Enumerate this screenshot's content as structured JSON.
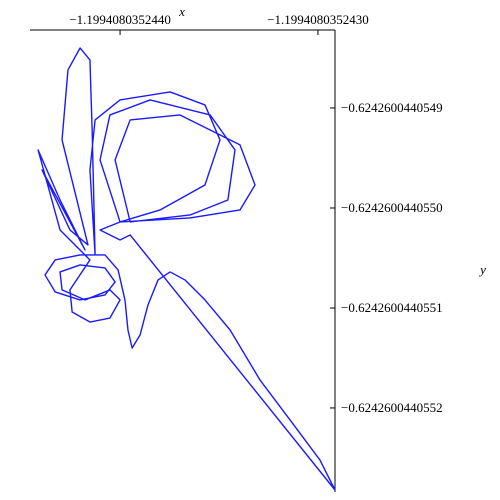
{
  "chart_data": {
    "type": "line",
    "x_label": "x",
    "y_label": "y",
    "color": "#1a1aff",
    "xlim": [
      -1.199408035244455,
      -1.199408035242914
    ],
    "ylim": [
      -0.624260044055284,
      -0.624260044054822
    ],
    "xticks": [
      {
        "value": -1.199408035244,
        "label": "−1.1994080352440"
      },
      {
        "value": -1.199408035243,
        "label": "−1.1994080352430"
      }
    ],
    "yticks": [
      {
        "value": -0.6242600440549,
        "label": "−0.6242600440549"
      },
      {
        "value": -0.624260044055,
        "label": "−0.6242600440550"
      },
      {
        "value": -0.6242600440551,
        "label": "−0.6242600440551"
      },
      {
        "value": -0.6242600440552,
        "label": "−0.6242600440552"
      }
    ],
    "x": [
      -1.199408035242914,
      -1.19940803524299,
      -1.199408035243141,
      -1.199408035243293,
      -1.199408035243444,
      -1.199408035243571,
      -1.199408035243672,
      -1.199408035243747,
      -1.199408035243808,
      -1.199408035243859,
      -1.199408035243899,
      -1.199408035243939,
      -1.19940803524396,
      -1.199408035243975,
      -1.19940803524401,
      -1.199408035244076,
      -1.199408035244202,
      -1.199408035244328,
      -1.199408035244379,
      -1.199408035244328,
      -1.199408035244202,
      -1.199408035244076,
      -1.199408035244025,
      -1.199408035244076,
      -1.199408035244202,
      -1.199408035244303,
      -1.199408035244293,
      -1.199408035244177,
      -1.199408035244051,
      -1.199408035244,
      -1.199408035244051,
      -1.199408035244152,
      -1.199408035244242,
      -1.199408035244253,
      -1.199408035244152,
      -1.199408035244303,
      -1.199408035244414,
      -1.199408035244303,
      -1.199408035244177,
      -1.199408035244394,
      -1.199408035244253,
      -1.199408035244162,
      -1.199408035244293,
      -1.199408035244263,
      -1.199408035244202,
      -1.199408035244152,
      -1.199408035244141,
      -1.199408035244126,
      -1.199408035244152,
      -1.199408035244126,
      -1.199408035244,
      -1.199408035243747,
      -1.199408035243571,
      -1.199408035243495,
      -1.199408035243571,
      -1.199408035243798,
      -1.199408035244,
      -1.199408035244101,
      -1.199408035244051,
      -1.199408035243848,
      -1.199408035243545,
      -1.199408035243419,
      -1.199408035243455,
      -1.199408035243646,
      -1.199408035243949,
      -1.199408035244025,
      -1.199408035243949,
      -1.199408035243697,
      -1.199408035243394,
      -1.199408035243318,
      -1.199408035243394,
      -1.199408035243646,
      -1.199408035244,
      -1.199408035244101,
      -1.199408035244,
      -1.199408035243949,
      -1.199408035242914
    ],
    "values": [
      -0.624260044055282,
      -0.624260044055252,
      -0.624260044055212,
      -0.624260044055172,
      -0.624260044055122,
      -0.624260044055092,
      -0.624260044055072,
      -0.624260044055064,
      -0.624260044055072,
      -0.624260044055097,
      -0.624260044055127,
      -0.62426004405514,
      -0.624260044055122,
      -0.624260044055092,
      -0.624260044055062,
      -0.624260044055047,
      -0.624260044055047,
      -0.624260044055052,
      -0.624260044055067,
      -0.624260044055084,
      -0.624260044055092,
      -0.624260044055087,
      -0.624260044055074,
      -0.62426004405506,
      -0.624260044055057,
      -0.624260044055064,
      -0.624260044055082,
      -0.624260044055092,
      -0.624260044055082,
      -0.624260044055092,
      -0.62426004405511,
      -0.624260044055114,
      -0.624260044055104,
      -0.624260044055082,
      -0.624260044055052,
      -0.624260044055022,
      -0.624260044054942,
      -0.624260044054992,
      -0.624260044055042,
      -0.624260044054962,
      -0.624260044055022,
      -0.624260044055037,
      -0.624260044054932,
      -0.624260044054862,
      -0.62426004405484,
      -0.624260044054852,
      -0.624260044054922,
      -0.624260044055047,
      -0.624260044054962,
      -0.624260044054912,
      -0.624260044054892,
      -0.624260044054884,
      -0.624260044054897,
      -0.624260044054932,
      -0.624260044054977,
      -0.624260044055002,
      -0.624260044055014,
      -0.624260044054952,
      -0.624260044054907,
      -0.624260044054892,
      -0.624260044054907,
      -0.624260044054942,
      -0.624260044054992,
      -0.624260044055007,
      -0.624260044055014,
      -0.624260044054952,
      -0.624260044054912,
      -0.624260044054907,
      -0.624260044054937,
      -0.624260044054977,
      -0.624260044055002,
      -0.62426004405501,
      -0.624260044055014,
      -0.624260044055022,
      -0.624260044055032,
      -0.624260044055027,
      -0.624260044055282
    ]
  }
}
